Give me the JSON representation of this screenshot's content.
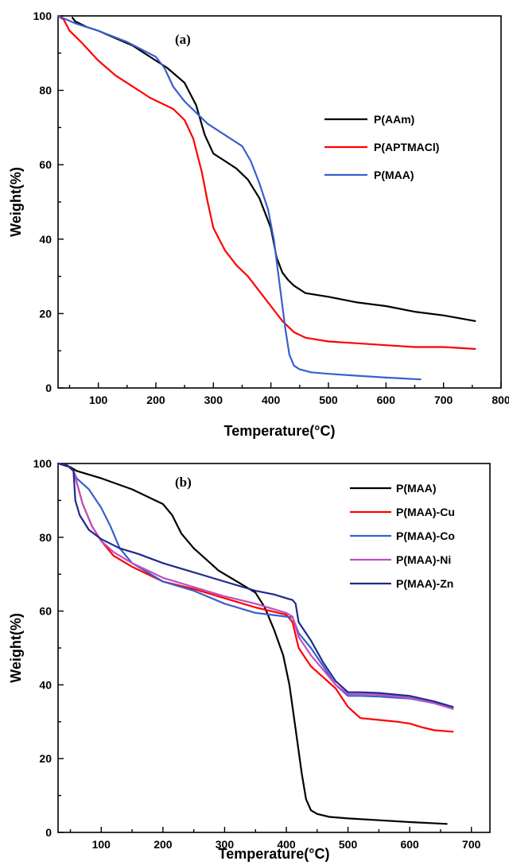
{
  "chart_data": [
    {
      "type": "line",
      "panel_label": "(a)",
      "xlabel": "Temperature(°C)",
      "ylabel": "Weight(%)",
      "xlim": [
        30,
        800
      ],
      "ylim": [
        0,
        100
      ],
      "xticks": [
        100,
        200,
        300,
        400,
        500,
        600,
        700,
        800
      ],
      "yticks": [
        0,
        20,
        40,
        60,
        80,
        100
      ],
      "legend_position": "center-right",
      "series": [
        {
          "name": "P(AAm)",
          "color": "#000000",
          "x": [
            55,
            60,
            80,
            100,
            130,
            160,
            190,
            220,
            250,
            270,
            285,
            300,
            320,
            340,
            360,
            380,
            400,
            410,
            420,
            430,
            440,
            460,
            500,
            550,
            600,
            650,
            700,
            755
          ],
          "y": [
            99.5,
            98.5,
            97,
            96,
            94,
            92,
            89,
            86,
            82,
            76,
            68,
            63,
            61,
            59,
            56,
            51,
            43,
            35,
            31,
            29,
            27.5,
            25.5,
            24.5,
            23,
            22,
            20.5,
            19.5,
            18
          ]
        },
        {
          "name": "P(APTMACl)",
          "color": "#ff0000",
          "x": [
            30,
            40,
            50,
            70,
            100,
            130,
            160,
            190,
            210,
            230,
            250,
            265,
            280,
            290,
            300,
            320,
            340,
            360,
            380,
            400,
            420,
            440,
            460,
            500,
            550,
            600,
            650,
            700,
            755
          ],
          "y": [
            100,
            99,
            96,
            93,
            88,
            84,
            81,
            78,
            76.5,
            75,
            72,
            67,
            58,
            50,
            43,
            37,
            33,
            30,
            26,
            22,
            18,
            15,
            13.5,
            12.5,
            12,
            11.5,
            11,
            11,
            10.5
          ]
        },
        {
          "name": "P(MAA)",
          "color": "#3a5fcd",
          "x": [
            30,
            45,
            60,
            100,
            150,
            200,
            215,
            230,
            250,
            270,
            290,
            310,
            330,
            350,
            365,
            380,
            395,
            405,
            415,
            425,
            432,
            440,
            450,
            470,
            500,
            550,
            600,
            660
          ],
          "y": [
            100,
            99,
            98,
            96,
            93,
            89,
            86,
            81,
            77,
            74,
            71,
            69,
            67,
            65,
            61,
            55,
            48,
            40,
            28,
            16,
            9,
            6,
            5,
            4.2,
            3.8,
            3.3,
            2.8,
            2.3
          ]
        }
      ]
    },
    {
      "type": "line",
      "panel_label": "(b)",
      "xlabel": "Temperature(°C)",
      "ylabel": "Weight(%)",
      "xlim": [
        30,
        730
      ],
      "ylim": [
        0,
        100
      ],
      "xticks": [
        100,
        200,
        300,
        400,
        500,
        600,
        700
      ],
      "yticks": [
        0,
        20,
        40,
        60,
        80,
        100
      ],
      "legend_position": "top-right",
      "series": [
        {
          "name": "P(MAA)",
          "color": "#000000",
          "x": [
            30,
            50,
            60,
            100,
            150,
            200,
            215,
            230,
            250,
            270,
            290,
            310,
            330,
            350,
            365,
            380,
            395,
            405,
            415,
            425,
            432,
            440,
            450,
            470,
            500,
            550,
            600,
            660
          ],
          "y": [
            100,
            99,
            98,
            96,
            93,
            89,
            86,
            81,
            77,
            74,
            71,
            69,
            67,
            65,
            61,
            55,
            48,
            40,
            28,
            16,
            9,
            6,
            5,
            4.2,
            3.8,
            3.3,
            2.8,
            2.3
          ]
        },
        {
          "name": "P(MAA)-Cu",
          "color": "#ff0000",
          "x": [
            30,
            45,
            55,
            60,
            70,
            85,
            100,
            120,
            150,
            200,
            250,
            300,
            350,
            400,
            410,
            420,
            440,
            460,
            480,
            500,
            520,
            550,
            580,
            600,
            620,
            640,
            670
          ],
          "y": [
            100,
            99.5,
            98,
            95,
            89,
            83,
            79,
            75,
            72,
            68,
            66,
            63.5,
            61,
            59,
            57,
            50,
            45,
            42,
            39,
            34,
            31,
            30.5,
            30,
            29.5,
            28.5,
            27.7,
            27.3
          ]
        },
        {
          "name": "P(MAA)-Co",
          "color": "#3a5fcd",
          "x": [
            30,
            45,
            55,
            60,
            80,
            100,
            115,
            130,
            150,
            200,
            250,
            300,
            350,
            400,
            410,
            420,
            440,
            460,
            480,
            500,
            520,
            550,
            600,
            640,
            670
          ],
          "y": [
            100,
            99.5,
            98,
            96,
            93,
            88,
            83,
            77,
            73,
            68,
            65.5,
            62,
            59.5,
            58.5,
            58.3,
            54,
            50,
            45,
            40,
            37,
            37,
            36.8,
            36.3,
            35,
            33.5
          ]
        },
        {
          "name": "P(MAA)-Ni",
          "color": "#c050c0",
          "x": [
            30,
            45,
            55,
            60,
            70,
            85,
            100,
            120,
            150,
            200,
            250,
            300,
            350,
            400,
            410,
            420,
            440,
            460,
            480,
            500,
            520,
            550,
            600,
            640,
            670
          ],
          "y": [
            100,
            99.5,
            98,
            95,
            89,
            83,
            79,
            76,
            73,
            69,
            66.5,
            64,
            62,
            59.5,
            58.5,
            53,
            48,
            44,
            40,
            37.5,
            37.5,
            37.3,
            36.5,
            35,
            33.5
          ]
        },
        {
          "name": "P(MAA)-Zn",
          "color": "#1e2a8c",
          "x": [
            30,
            45,
            55,
            58,
            65,
            80,
            100,
            130,
            160,
            200,
            250,
            300,
            350,
            380,
            400,
            410,
            415,
            420,
            440,
            460,
            480,
            500,
            520,
            550,
            600,
            640,
            670
          ],
          "y": [
            100,
            99.5,
            98,
            90,
            86,
            82,
            79.5,
            77,
            75.5,
            73,
            70.5,
            68,
            65.5,
            64.5,
            63.5,
            63,
            62,
            57,
            52,
            46,
            41,
            38,
            38,
            37.8,
            37,
            35.5,
            34
          ]
        }
      ]
    }
  ]
}
